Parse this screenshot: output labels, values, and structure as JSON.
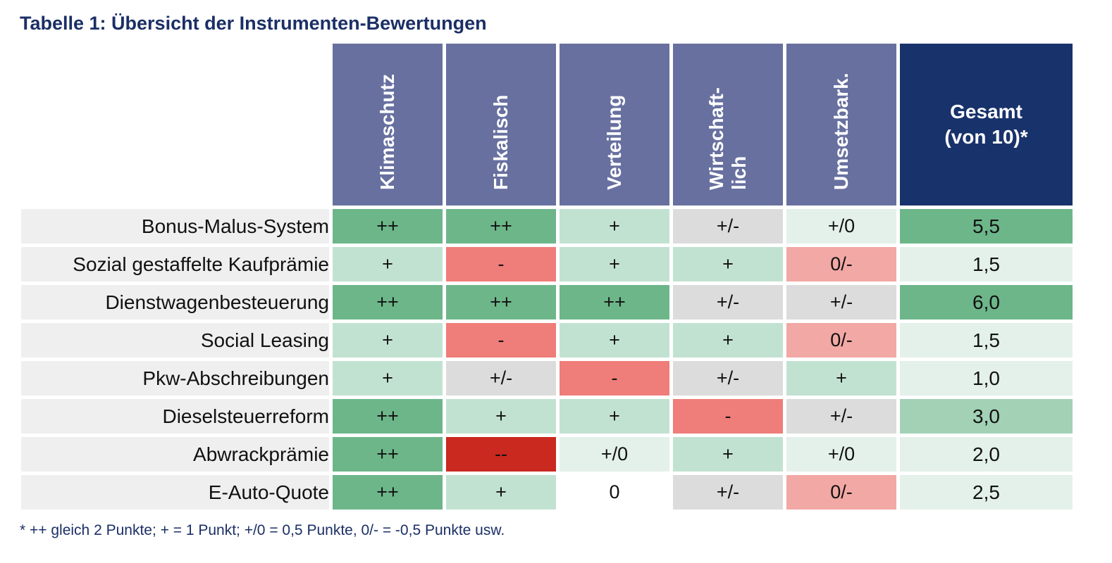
{
  "title": "Tabelle 1: Übersicht der Instrumenten-Bewertungen",
  "columns": [
    {
      "label": "Klimaschutz"
    },
    {
      "label": "Fiskalisch"
    },
    {
      "label": "Verteilung"
    },
    {
      "label_line1": "Wirtschaft-",
      "label_line2": "lich"
    },
    {
      "label": "Umsetzbark."
    }
  ],
  "total_header": {
    "line1": "Gesamt",
    "line2": "(von 10)*"
  },
  "rows": [
    {
      "label": "Bonus-Malus-System",
      "ratings": [
        "++",
        "++",
        "+",
        "+/-",
        "+/0"
      ],
      "total": "5,5"
    },
    {
      "label": "Sozial gestaffelte Kaufprämie",
      "ratings": [
        "+",
        "-",
        "+",
        "+",
        "0/-"
      ],
      "total": "1,5"
    },
    {
      "label": "Dienstwagenbesteuerung",
      "ratings": [
        "++",
        "++",
        "++",
        "+/-",
        "+/-"
      ],
      "total": "6,0"
    },
    {
      "label": "Social Leasing",
      "ratings": [
        "+",
        "-",
        "+",
        "+",
        "0/-"
      ],
      "total": "1,5"
    },
    {
      "label": "Pkw-Abschreibungen",
      "ratings": [
        "+",
        "+/-",
        "-",
        "+/-",
        "+"
      ],
      "total": "1,0"
    },
    {
      "label": "Dieselsteuerreform",
      "ratings": [
        "++",
        "+",
        "+",
        "-",
        "+/-"
      ],
      "total": "3,0"
    },
    {
      "label": "Abwrackprämie",
      "ratings": [
        "++",
        "--",
        "+/0",
        "+",
        "+/0"
      ],
      "total": "2,0"
    },
    {
      "label": "E-Auto-Quote",
      "ratings": [
        "++",
        "+",
        "0",
        "+/-",
        "0/-"
      ],
      "total": "2,5"
    }
  ],
  "footnote": "* ++ gleich 2 Punkte; + = 1 Punkt; +/0 = 0,5 Punkte, 0/- = -0,5 Punkte usw.",
  "colors": {
    "header": "#67709f",
    "total_header": "#18326b",
    "plus_plus": "#6db68a",
    "plus": "#c2e2d1",
    "plus_zero": "#e3f1ea",
    "plus_minus": "#dcdcdc",
    "zero_minus": "#f2a8a4",
    "minus": "#ef7d79",
    "minus_minus": "#c9291f"
  }
}
